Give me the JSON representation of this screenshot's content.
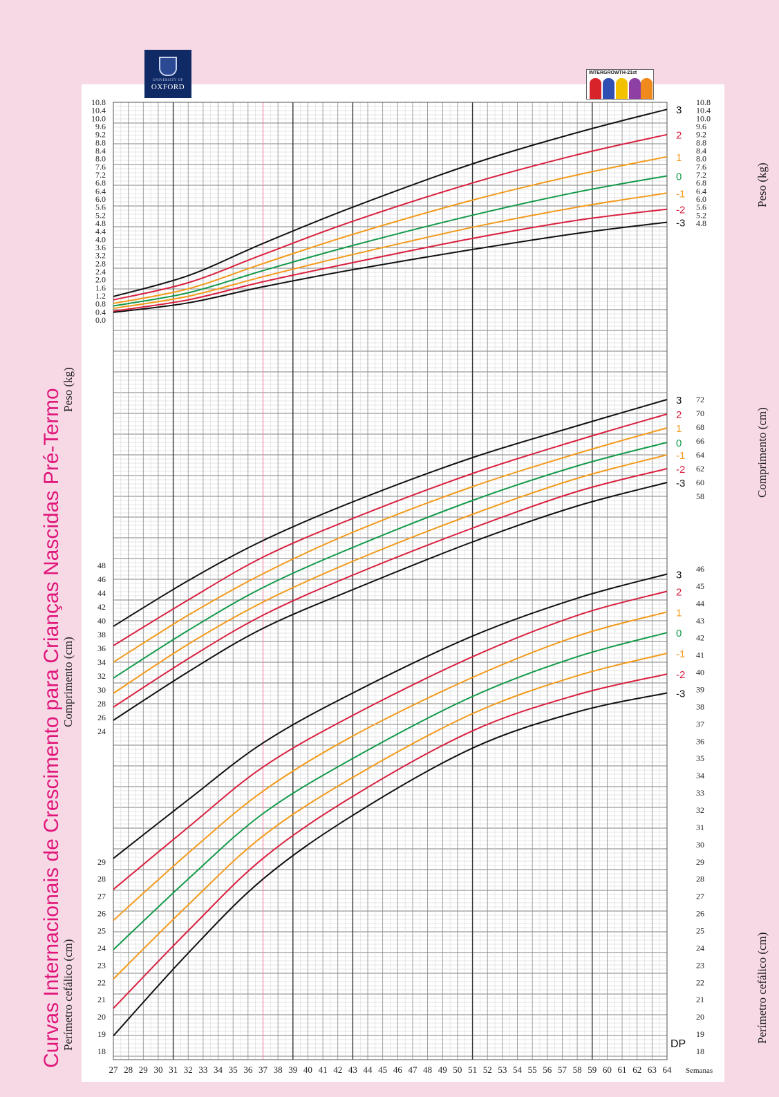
{
  "title": "Curvas Internacionais de Crescimento para Crianças Nascidas Pré-Termo",
  "logos": {
    "oxford": {
      "small": "UNIVERSITY OF",
      "main": "OXFORD"
    },
    "intergrowth": {
      "text": "INTERGROWTH-21st"
    }
  },
  "labels": {
    "peso": "Peso (kg)",
    "comprimento": "Comprimento (cm)",
    "perimetro": "Perímetro cefálico (cm)",
    "semanas": "Semanas",
    "dp": "DP"
  },
  "colors": {
    "pink_background": "#f7d9e6",
    "title": "#e0167a",
    "sd_3": "#111111",
    "sd_2": "#d9203f",
    "sd_1": "#f39a1b",
    "sd_0": "#139a4a",
    "term_line": "#f28aa8"
  },
  "chart_data": {
    "type": "line",
    "x_label": "Semanas",
    "x_ticks": [
      "27",
      "28",
      "29",
      "30",
      "31",
      "32",
      "33",
      "34",
      "35",
      "36",
      "37",
      "38",
      "39",
      "40",
      "41",
      "42",
      "43",
      "44",
      "45",
      "46",
      "47",
      "48",
      "49",
      "50",
      "51",
      "52",
      "53",
      "54",
      "55",
      "56",
      "57",
      "58",
      "59",
      "60",
      "61",
      "62",
      "63",
      "64"
    ],
    "x_range": [
      27,
      64
    ],
    "term_marker_week": 37,
    "grid": true,
    "sd_labels": [
      "3",
      "2",
      "1",
      "0",
      "-1",
      "-2",
      "-3"
    ],
    "panels": [
      {
        "name": "Peso (kg)",
        "left_ticks": [
          "0.0",
          "0.4",
          "0.8",
          "1.2",
          "1.6",
          "2.0",
          "2.4",
          "2.8",
          "3.2",
          "3.6",
          "4.0",
          "4.4",
          "4.8",
          "5.2",
          "5.6",
          "6.0",
          "6.4",
          "6.8",
          "7.2",
          "7.6",
          "8.0",
          "8.4",
          "8.8",
          "9.2",
          "9.6",
          "10.0",
          "10.4",
          "10.8"
        ],
        "right_ticks": [
          "4.8",
          "5.2",
          "5.6",
          "6.0",
          "6.4",
          "6.8",
          "7.2",
          "7.6",
          "8.0",
          "8.4",
          "8.8",
          "9.2",
          "9.6",
          "10.0",
          "10.4",
          "10.8"
        ],
        "y_range": [
          0.0,
          10.8
        ],
        "series": [
          {
            "name": "3",
            "x": [
              27,
              32,
              37,
              43,
              51,
              58,
              64
            ],
            "values": [
              1.17,
              2.2,
              3.8,
              5.6,
              7.75,
              9.3,
              10.45
            ]
          },
          {
            "name": "2",
            "x": [
              27,
              32,
              37,
              43,
              51,
              58,
              64
            ],
            "values": [
              1.0,
              1.85,
              3.25,
              4.9,
              6.8,
              8.2,
              9.2
            ]
          },
          {
            "name": "1",
            "x": [
              27,
              32,
              37,
              43,
              51,
              58,
              64
            ],
            "values": [
              0.82,
              1.55,
              2.8,
              4.25,
              5.95,
              7.2,
              8.1
            ]
          },
          {
            "name": "0",
            "x": [
              27,
              32,
              37,
              43,
              51,
              58,
              64
            ],
            "values": [
              0.7,
              1.35,
              2.45,
              3.7,
              5.2,
              6.35,
              7.15
            ]
          },
          {
            "name": "-1",
            "x": [
              27,
              32,
              37,
              43,
              51,
              58,
              64
            ],
            "values": [
              0.58,
              1.18,
              2.15,
              3.25,
              4.6,
              5.6,
              6.3
            ]
          },
          {
            "name": "-2",
            "x": [
              27,
              32,
              37,
              43,
              51,
              58,
              64
            ],
            "values": [
              0.44,
              1.0,
              1.9,
              2.85,
              4.05,
              4.95,
              5.5
            ]
          },
          {
            "name": "-3",
            "x": [
              27,
              32,
              37,
              43,
              51,
              58,
              64
            ],
            "values": [
              0.38,
              0.85,
              1.65,
              2.5,
              3.5,
              4.3,
              4.85
            ]
          }
        ]
      },
      {
        "name": "Comprimento (cm)",
        "left_ticks": [
          "24",
          "26",
          "28",
          "30",
          "32",
          "34",
          "36",
          "38",
          "40",
          "42",
          "44",
          "46",
          "48"
        ],
        "right_ticks": [
          "58",
          "60",
          "62",
          "64",
          "66",
          "68",
          "70",
          "72"
        ],
        "y_range": [
          22,
          73
        ],
        "series": [
          {
            "name": "3",
            "x": [
              27,
              32,
              37,
              43,
              51,
              58,
              64
            ],
            "values": [
              39.2,
              45.8,
              51.6,
              57.2,
              63.6,
              68.2,
              72.0
            ]
          },
          {
            "name": "2",
            "x": [
              27,
              32,
              37,
              43,
              51,
              58,
              64
            ],
            "values": [
              36.4,
              43.0,
              49.2,
              54.8,
              61.3,
              66.1,
              69.9
            ]
          },
          {
            "name": "1",
            "x": [
              27,
              32,
              37,
              43,
              51,
              58,
              64
            ],
            "values": [
              34.0,
              40.8,
              46.8,
              52.8,
              59.4,
              64.2,
              67.9
            ]
          },
          {
            "name": "0",
            "x": [
              27,
              32,
              37,
              43,
              51,
              58,
              64
            ],
            "values": [
              31.7,
              38.6,
              44.8,
              50.6,
              57.4,
              62.4,
              65.8
            ]
          },
          {
            "name": "-1",
            "x": [
              27,
              32,
              37,
              43,
              51,
              58,
              64
            ],
            "values": [
              29.5,
              36.6,
              42.7,
              48.6,
              55.4,
              60.6,
              64.0
            ]
          },
          {
            "name": "-2",
            "x": [
              27,
              32,
              37,
              43,
              51,
              58,
              64
            ],
            "values": [
              27.5,
              34.5,
              40.8,
              46.6,
              53.4,
              58.7,
              62.0
            ]
          },
          {
            "name": "-3",
            "x": [
              27,
              32,
              37,
              43,
              51,
              58,
              64
            ],
            "values": [
              25.6,
              32.6,
              38.9,
              44.5,
              51.4,
              56.6,
              60.0
            ]
          }
        ]
      },
      {
        "name": "Perímetro cefálico (cm)",
        "left_ticks": [
          "18",
          "19",
          "20",
          "21",
          "22",
          "23",
          "24",
          "25",
          "26",
          "27",
          "28",
          "29"
        ],
        "right_ticks": [
          "18",
          "19",
          "20",
          "21",
          "22",
          "23",
          "24",
          "25",
          "26",
          "27",
          "28",
          "29",
          "30",
          "31",
          "32",
          "33",
          "34",
          "35",
          "36",
          "37",
          "38",
          "39",
          "40",
          "41",
          "42",
          "43",
          "44",
          "45",
          "46"
        ],
        "y_range": [
          18,
          46
        ],
        "series": [
          {
            "name": "3",
            "x": [
              27,
              32,
              37,
              43,
              51,
              58,
              64
            ],
            "values": [
              29.2,
              32.6,
              35.9,
              38.8,
              42.1,
              44.3,
              45.7
            ]
          },
          {
            "name": "2",
            "x": [
              27,
              32,
              37,
              43,
              51,
              58,
              64
            ],
            "values": [
              27.4,
              31.0,
              34.5,
              37.5,
              40.9,
              43.3,
              44.7
            ]
          },
          {
            "name": "1",
            "x": [
              27,
              32,
              37,
              43,
              51,
              58,
              64
            ],
            "values": [
              25.6,
              29.5,
              33.1,
              36.3,
              39.7,
              42.1,
              43.5
            ]
          },
          {
            "name": "0",
            "x": [
              27,
              32,
              37,
              43,
              51,
              58,
              64
            ],
            "values": [
              23.9,
              28.0,
              31.8,
              35.0,
              38.6,
              40.9,
              42.3
            ]
          },
          {
            "name": "-1",
            "x": [
              27,
              32,
              37,
              43,
              51,
              58,
              64
            ],
            "values": [
              22.2,
              26.5,
              30.5,
              33.9,
              37.6,
              39.8,
              41.1
            ]
          },
          {
            "name": "-2",
            "x": [
              27,
              32,
              37,
              43,
              51,
              58,
              64
            ],
            "values": [
              20.5,
              25.0,
              29.2,
              32.8,
              36.6,
              38.7,
              39.9
            ]
          },
          {
            "name": "-3",
            "x": [
              27,
              32,
              37,
              43,
              51,
              58,
              64
            ],
            "values": [
              18.9,
              23.7,
              28.0,
              31.7,
              35.6,
              37.7,
              38.8
            ]
          }
        ]
      }
    ]
  }
}
